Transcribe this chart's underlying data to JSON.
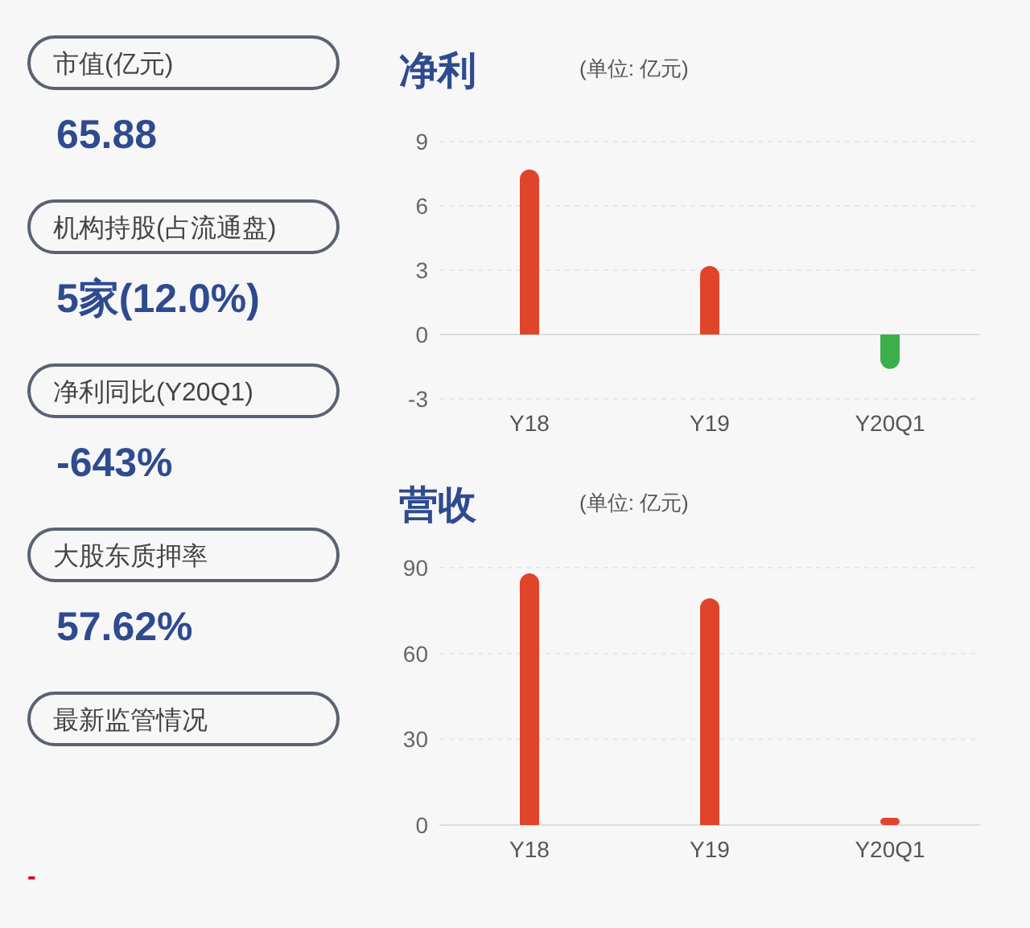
{
  "chart_data": [
    {
      "type": "other",
      "annotations": [
        "市值(亿元)",
        "65.88",
        "机构持股(占流通盘)",
        "5家(12.0%)",
        "净利同比(Y20Q1)",
        "-643%",
        "大股东质押率",
        "57.62%",
        "最新监管情况",
        "-"
      ]
    },
    {
      "type": "bar",
      "title": "净利",
      "subtitle": "(单位: 亿元)",
      "categories": [
        "Y18",
        "Y19",
        "Y20Q1"
      ],
      "values": [
        7.7,
        3.2,
        -1.6
      ],
      "colors": [
        "#e0452b",
        "#e0452b",
        "#3cae4a"
      ],
      "ylim": [
        -3,
        9
      ],
      "yticks": [
        -3,
        0,
        3,
        6,
        9
      ],
      "grid": "y"
    },
    {
      "type": "bar",
      "title": "营收",
      "subtitle": "(单位: 亿元)",
      "categories": [
        "Y18",
        "Y19",
        "Y20Q1"
      ],
      "values": [
        88,
        79.3,
        2.5
      ],
      "colors": [
        "#e0452b",
        "#e0452b",
        "#e0452b"
      ],
      "ylim": [
        0,
        90
      ],
      "yticks": [
        0,
        30,
        60,
        90
      ],
      "grid": "y"
    }
  ]
}
